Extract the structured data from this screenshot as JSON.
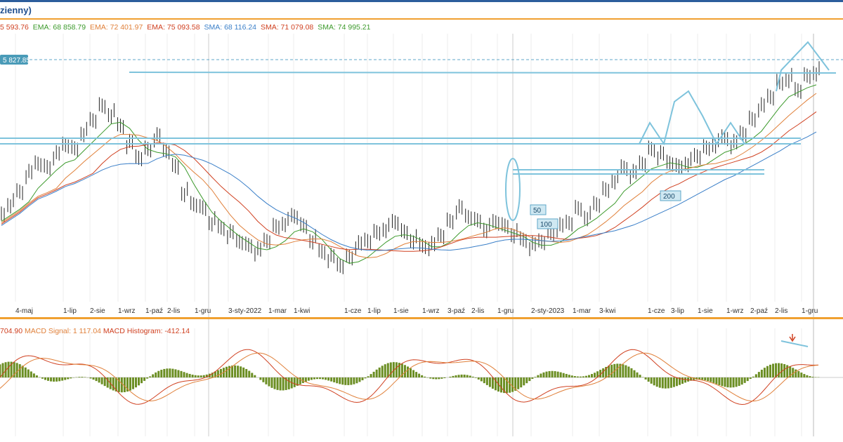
{
  "title": "zienny)",
  "legend": {
    "first": "5 593.76",
    "ema1": "EMA: 68 858.79",
    "ema2": "EMA: 72 401.97",
    "ema3": "EMA: 75 093.58",
    "sma1": "SMA: 68 116.24",
    "sma2": "SMA: 71 079.08",
    "sma3": "SMA: 74 995.21"
  },
  "price_tag": "5 827.85",
  "labels": {
    "ma50": "50",
    "ma100": "100",
    "ma200": "200"
  },
  "macd_legend": {
    "macd": "704.90",
    "signal": "MACD Signal: 1 117.04",
    "hist": "MACD Histogram: -412.14"
  },
  "colors": {
    "accent": "#2c5d9c",
    "separator": "#f0a030",
    "annotation": "#7ec3dc",
    "histogram": "#6b8e23"
  },
  "chart_data": {
    "type": "line",
    "x_ticks": [
      "4-maj",
      "1-lip",
      "2-sie",
      "1-wrz",
      "1-paź",
      "2-lis",
      "1-gru",
      "3-sty-2022",
      "1-mar",
      "1-kwi",
      "1-cze",
      "1-lip",
      "1-sie",
      "1-wrz",
      "3-paź",
      "2-lis",
      "1-gru",
      "2-sty-2023",
      "1-mar",
      "3-kwi",
      "1-cze",
      "3-lip",
      "1-sie",
      "1-wrz",
      "2-paź",
      "2-lis",
      "1-gru"
    ],
    "price_series": [
      62,
      64,
      66,
      69,
      71,
      70,
      72,
      74,
      73,
      76,
      78,
      80,
      79,
      77,
      74,
      72,
      73,
      75,
      73,
      70,
      66,
      64,
      63,
      61,
      60,
      59,
      58,
      57,
      56,
      58,
      60,
      61,
      62,
      60,
      58,
      56,
      55,
      54,
      55,
      57,
      58,
      59,
      60,
      61,
      59,
      58,
      57,
      57,
      59,
      61,
      63,
      62,
      61,
      60,
      61,
      60,
      59,
      58,
      57,
      58,
      59,
      60,
      61,
      63,
      62,
      64,
      66,
      68,
      70,
      69,
      71,
      73,
      72,
      71,
      70,
      71,
      72,
      73,
      74,
      75,
      74,
      76,
      78,
      80,
      82,
      84,
      85,
      83,
      85,
      86
    ],
    "annotations": [
      "50",
      "100",
      "200"
    ]
  }
}
